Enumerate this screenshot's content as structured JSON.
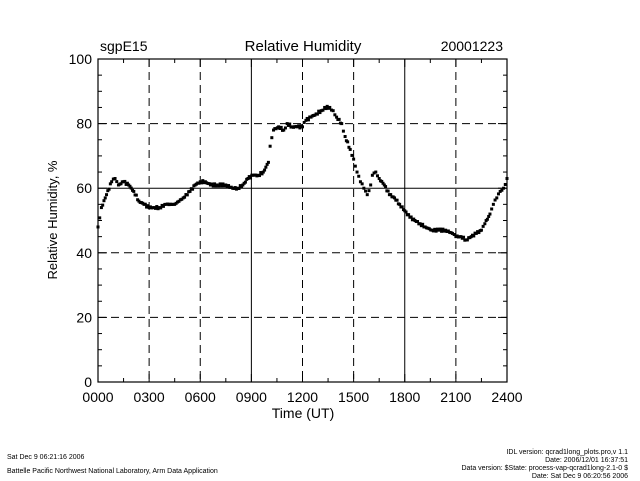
{
  "chart_data": {
    "type": "scatter",
    "title": "Relative Humidity",
    "site": "sgpE15",
    "date": "20001223",
    "xlabel": "Time (UT)",
    "ylabel": "Relative Humidity, %",
    "xlim": [
      0,
      2400
    ],
    "ylim": [
      0,
      100
    ],
    "x_ticks": [
      "0000",
      "0300",
      "0600",
      "0900",
      "1200",
      "1500",
      "1800",
      "2100",
      "2400"
    ],
    "y_ticks": [
      "0",
      "20",
      "40",
      "60",
      "80",
      "100"
    ],
    "grid": true,
    "colors": {
      "data": "#000000",
      "grid": "#000000",
      "background": "#ffffff"
    },
    "series": [
      {
        "name": "Relative Humidity",
        "points": [
          [
            0,
            48
          ],
          [
            20,
            54
          ],
          [
            50,
            58
          ],
          [
            80,
            62
          ],
          [
            100,
            63
          ],
          [
            120,
            61
          ],
          [
            150,
            62
          ],
          [
            180,
            61
          ],
          [
            210,
            59
          ],
          [
            240,
            56
          ],
          [
            270,
            55
          ],
          [
            300,
            54
          ],
          [
            330,
            54
          ],
          [
            360,
            54
          ],
          [
            400,
            55
          ],
          [
            450,
            55
          ],
          [
            500,
            57
          ],
          [
            540,
            59
          ],
          [
            570,
            61
          ],
          [
            600,
            62
          ],
          [
            630,
            62
          ],
          [
            660,
            61
          ],
          [
            700,
            61
          ],
          [
            750,
            61
          ],
          [
            790,
            60
          ],
          [
            820,
            60
          ],
          [
            850,
            61
          ],
          [
            880,
            63
          ],
          [
            910,
            64
          ],
          [
            940,
            64
          ],
          [
            970,
            65
          ],
          [
            1000,
            68
          ],
          [
            1010,
            73
          ],
          [
            1030,
            78
          ],
          [
            1060,
            79
          ],
          [
            1090,
            78
          ],
          [
            1110,
            80
          ],
          [
            1140,
            79
          ],
          [
            1170,
            79
          ],
          [
            1200,
            79
          ],
          [
            1220,
            81
          ],
          [
            1250,
            82
          ],
          [
            1280,
            83
          ],
          [
            1310,
            84
          ],
          [
            1330,
            85
          ],
          [
            1360,
            85
          ],
          [
            1380,
            84
          ],
          [
            1400,
            82
          ],
          [
            1430,
            80
          ],
          [
            1450,
            76
          ],
          [
            1480,
            72
          ],
          [
            1500,
            69
          ],
          [
            1520,
            65
          ],
          [
            1540,
            62
          ],
          [
            1560,
            60
          ],
          [
            1580,
            58
          ],
          [
            1600,
            61
          ],
          [
            1610,
            64
          ],
          [
            1630,
            65
          ],
          [
            1650,
            63
          ],
          [
            1680,
            61
          ],
          [
            1710,
            58
          ],
          [
            1740,
            57
          ],
          [
            1770,
            55
          ],
          [
            1800,
            53
          ],
          [
            1830,
            51
          ],
          [
            1860,
            50
          ],
          [
            1890,
            49
          ],
          [
            1920,
            48
          ],
          [
            1960,
            47
          ],
          [
            2000,
            47
          ],
          [
            2040,
            47
          ],
          [
            2080,
            46
          ],
          [
            2100,
            45
          ],
          [
            2130,
            45
          ],
          [
            2160,
            44
          ],
          [
            2190,
            45
          ],
          [
            2220,
            46
          ],
          [
            2250,
            47
          ],
          [
            2270,
            49
          ],
          [
            2300,
            52
          ],
          [
            2320,
            55
          ],
          [
            2340,
            57
          ],
          [
            2360,
            59
          ],
          [
            2380,
            60
          ],
          [
            2400,
            63
          ]
        ]
      }
    ]
  },
  "footer": {
    "left_line1": "Sat Dec  9 06:21:16 2006",
    "left_line2": "Battelle Pacific Northwest National Laboratory, Arm Data Application",
    "right_line1": "IDL version: qcrad1long_plots.pro,v 1.1",
    "right_line2": "Date: 2006/12/01 16:37:51",
    "right_line3": "Data version: $State: process-vap-qcrad1long-2.1-0 $",
    "right_line4": "Date: Sat Dec  9 06:20:56 2006"
  }
}
